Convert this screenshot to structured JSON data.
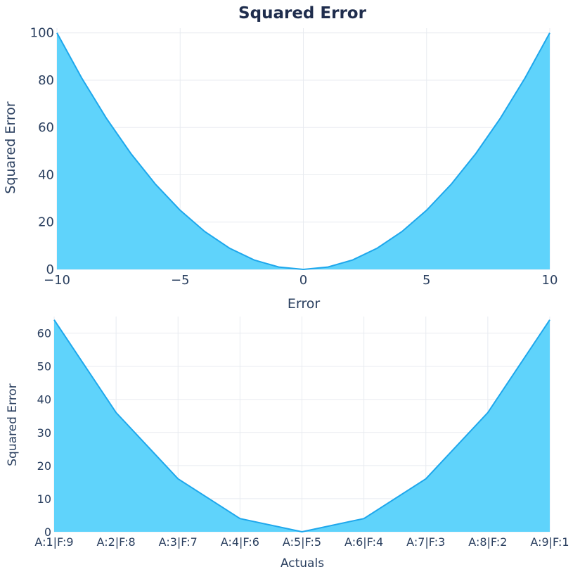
{
  "chart_data": [
    {
      "type": "area",
      "title": "Squared Error",
      "xlabel": "Error",
      "ylabel": "Squared Error",
      "xlim": [
        -10,
        10
      ],
      "ylim": [
        0,
        102
      ],
      "x_ticks": [
        "−10",
        "−5",
        "0",
        "5",
        "10"
      ],
      "x_tick_values": [
        -10,
        -5,
        0,
        5,
        10
      ],
      "y_ticks": [
        "0",
        "20",
        "40",
        "60",
        "80",
        "100"
      ],
      "y_tick_values": [
        0,
        20,
        40,
        60,
        80,
        100
      ],
      "grid": true,
      "x": [
        -10,
        -9,
        -8,
        -7,
        -6,
        -5,
        -4,
        -3,
        -2,
        -1,
        0,
        1,
        2,
        3,
        4,
        5,
        6,
        7,
        8,
        9,
        10
      ],
      "y": [
        100,
        81,
        64,
        49,
        36,
        25,
        16,
        9,
        4,
        1,
        0,
        1,
        4,
        9,
        16,
        25,
        36,
        49,
        64,
        81,
        100
      ]
    },
    {
      "type": "area",
      "xlabel": "Actuals",
      "ylabel": "Squared Error",
      "ylim": [
        0,
        65
      ],
      "categories": [
        "A:1|F:9",
        "A:2|F:8",
        "A:3|F:7",
        "A:4|F:6",
        "A:5|F:5",
        "A:6|F:4",
        "A:7|F:3",
        "A:8|F:2",
        "A:9|F:1"
      ],
      "y_ticks": [
        "0",
        "10",
        "20",
        "30",
        "40",
        "50",
        "60"
      ],
      "y_tick_values": [
        0,
        10,
        20,
        30,
        40,
        50,
        60
      ],
      "grid": true,
      "values": [
        64,
        36,
        16,
        4,
        0,
        4,
        16,
        36,
        64
      ]
    }
  ],
  "colors": {
    "fill": "#5fd3fb",
    "line": "#1ea7ec"
  }
}
